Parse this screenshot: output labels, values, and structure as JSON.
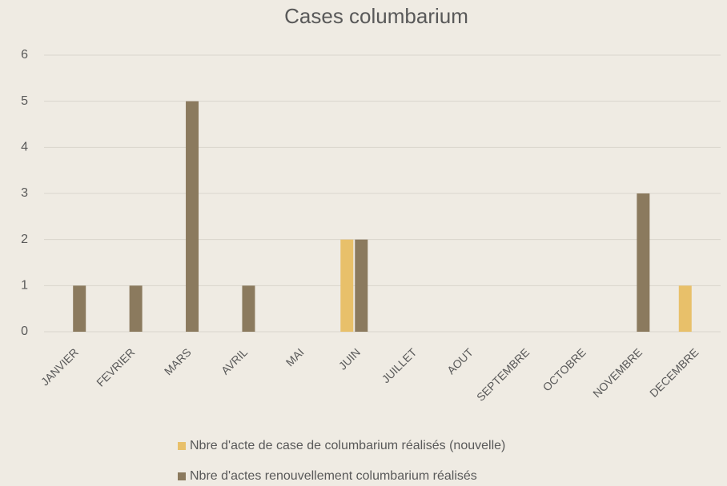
{
  "chart_data": {
    "type": "bar",
    "title": "Cases columbarium",
    "categories": [
      "JANVIER",
      "FEVRIER",
      "MARS",
      "AVRIL",
      "MAI",
      "JUIN",
      "JUILLET",
      "AOUT",
      "SEPTEMBRE",
      "OCTOBRE",
      "NOVEMBRE",
      "DECEMBRE"
    ],
    "series": [
      {
        "name": "Nbre d'acte de case de columbarium réalisés (nouvelle)",
        "color": "#e8c06a",
        "values": [
          0,
          0,
          0,
          0,
          0,
          2,
          0,
          0,
          0,
          0,
          0,
          1
        ]
      },
      {
        "name": "Nbre d'actes renouvellement columbarium  réalisés",
        "color": "#8b7a5e",
        "values": [
          1,
          1,
          5,
          1,
          0,
          2,
          0,
          0,
          0,
          0,
          3,
          0
        ]
      }
    ],
    "ylim": [
      0,
      6
    ],
    "yticks": [
      0,
      1,
      2,
      3,
      4,
      5,
      6
    ],
    "grid": true,
    "legend": "bottom"
  }
}
